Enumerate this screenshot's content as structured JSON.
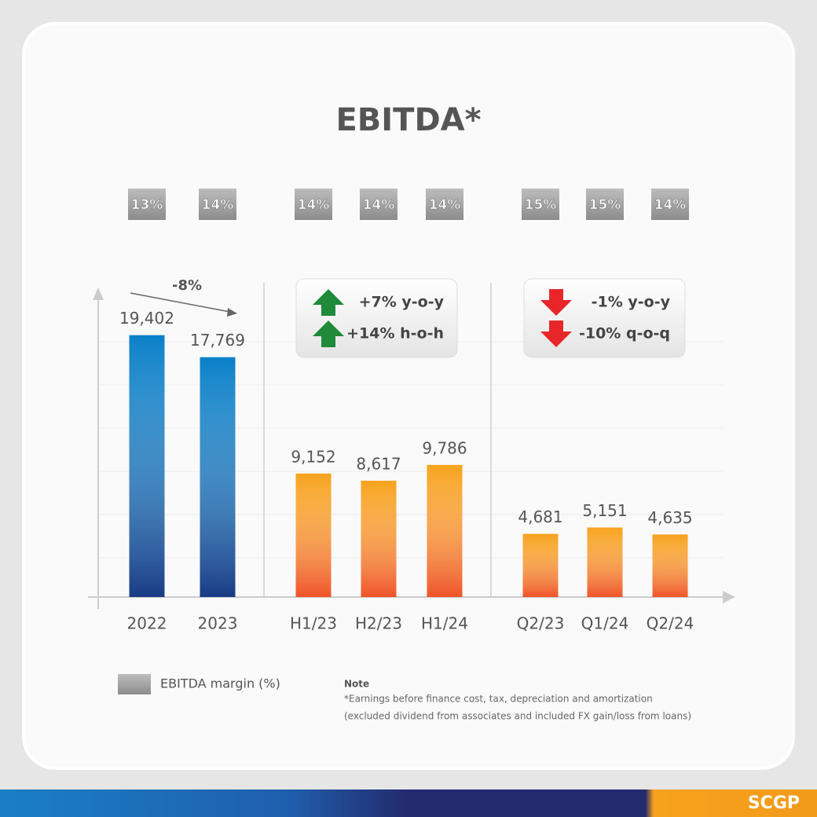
{
  "chart_data": {
    "type": "bar",
    "title": "EBITDA*",
    "categories": [
      "2022",
      "2023",
      "H1/23",
      "H2/23",
      "H1/24",
      "Q2/23",
      "Q1/24",
      "Q2/24"
    ],
    "values": [
      19402,
      17769,
      9152,
      8617,
      9786,
      4681,
      5151,
      4635
    ],
    "value_labels": [
      "19,402",
      "17,769",
      "9,152",
      "8,617",
      "9,786",
      "4,681",
      "5,151",
      "4,635"
    ],
    "colors": [
      "#0a80c8",
      "#0a80c8",
      "#f7a21d",
      "#f7a21d",
      "#f7a21d",
      "#f7a21d",
      "#f7a21d",
      "#f7a21d"
    ],
    "margins": [
      13,
      14,
      14,
      14,
      14,
      15,
      15,
      14
    ],
    "margin_labels": [
      "13%",
      "14%",
      "14%",
      "14%",
      "14%",
      "15%",
      "15%",
      "14%"
    ],
    "margin_legend": "EBITDA margin (%)",
    "ylim": [
      0,
      22000
    ],
    "annotations": {
      "annual": "-8%",
      "half_yoy": "+7% y-o-y",
      "half_hoh": "+14% h-o-h",
      "quarter_yoy": "-1% y-o-y",
      "quarter_qoq": "-10% q-o-q"
    },
    "note_title": "Note",
    "note_lines": [
      "*Earnings before finance cost, tax, depreciation and amortization",
      "(excluded dividend from associates and included FX gain/loss from loans)"
    ],
    "brand": "SCGP"
  }
}
